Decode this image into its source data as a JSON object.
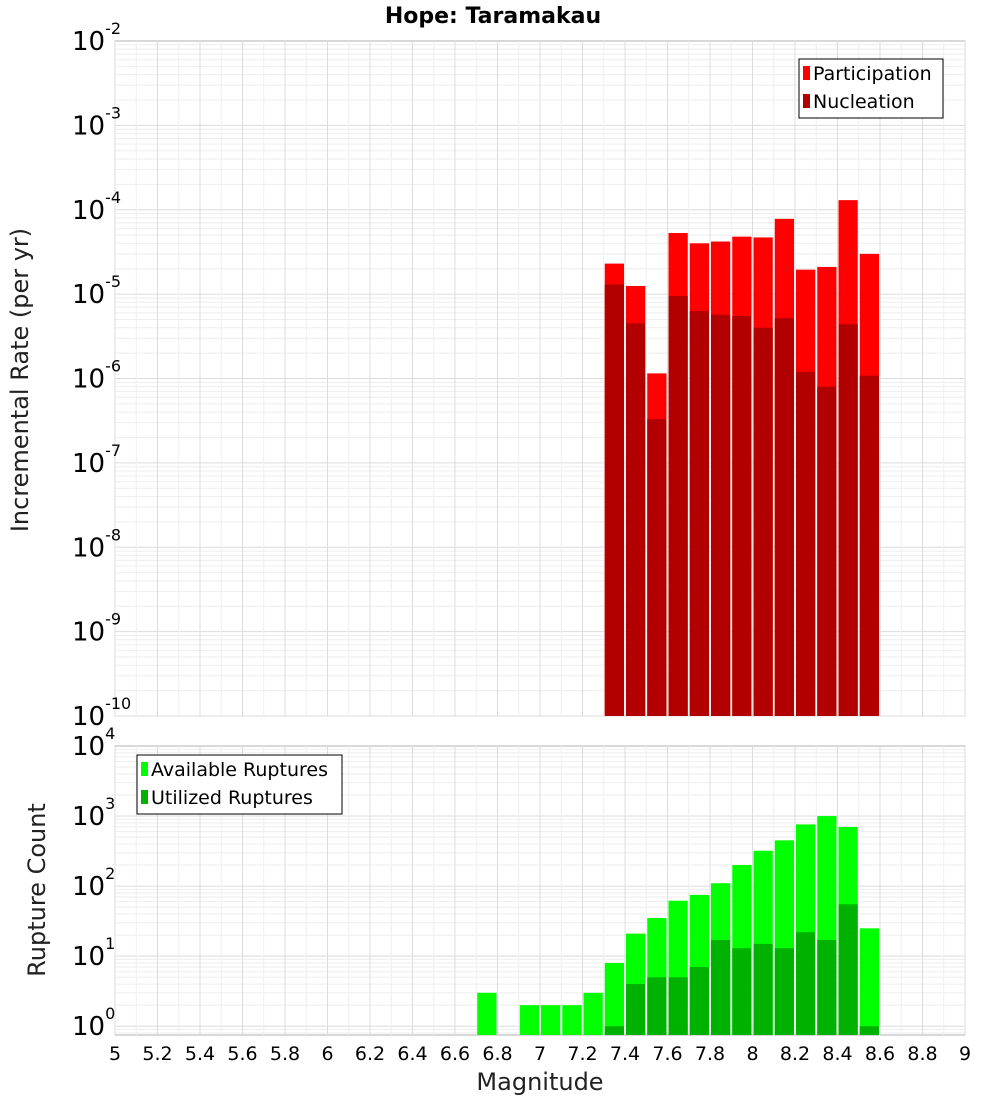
{
  "chart_data": {
    "type": "bar",
    "title": "Hope: Taramakau",
    "xlabel": "Magnitude",
    "xlim": [
      5,
      9
    ],
    "x_ticks": [
      "5",
      "5.2",
      "5.4",
      "5.6",
      "5.8",
      "6",
      "6.2",
      "6.4",
      "6.6",
      "6.8",
      "7",
      "7.2",
      "7.4",
      "7.6",
      "7.8",
      "8",
      "8.2",
      "8.4",
      "8.6",
      "8.8",
      "9"
    ],
    "panels": [
      {
        "ylabel": "Incremental Rate (per yr)",
        "yscale": "log",
        "ylim": [
          1e-10,
          0.01
        ],
        "y_ticks": [
          {
            "base": "10",
            "exp": "-10"
          },
          {
            "base": "10",
            "exp": "-9"
          },
          {
            "base": "10",
            "exp": "-8"
          },
          {
            "base": "10",
            "exp": "-7"
          },
          {
            "base": "10",
            "exp": "-6"
          },
          {
            "base": "10",
            "exp": "-5"
          },
          {
            "base": "10",
            "exp": "-4"
          },
          {
            "base": "10",
            "exp": "-3"
          },
          {
            "base": "10",
            "exp": "-2"
          }
        ],
        "legend_position": "top-right",
        "bar_width": 0.1,
        "series": [
          {
            "name": "Participation",
            "color": "#ff0000",
            "x": [
              7.35,
              7.45,
              7.55,
              7.65,
              7.75,
              7.85,
              7.95,
              8.05,
              8.15,
              8.25,
              8.35,
              8.45,
              8.55
            ],
            "values": [
              2.3e-05,
              1.25e-05,
              1.15e-06,
              5.3e-05,
              4e-05,
              4.2e-05,
              4.8e-05,
              4.7e-05,
              7.8e-05,
              1.95e-05,
              2.1e-05,
              0.00013,
              3e-05
            ]
          },
          {
            "name": "Nucleation",
            "color": "#b20000",
            "x": [
              7.35,
              7.45,
              7.55,
              7.65,
              7.75,
              7.85,
              7.95,
              8.05,
              8.15,
              8.25,
              8.35,
              8.45,
              8.55
            ],
            "values": [
              1.3e-05,
              4.5e-06,
              3.3e-07,
              9.5e-06,
              6.3e-06,
              5.7e-06,
              5.5e-06,
              4e-06,
              5.2e-06,
              1.2e-06,
              8e-07,
              4.4e-06,
              1.08e-06
            ]
          }
        ]
      },
      {
        "ylabel": "Rupture Count",
        "yscale": "log",
        "ylim": [
          0.75,
          10000
        ],
        "y_ticks": [
          {
            "base": "10",
            "exp": "0"
          },
          {
            "base": "10",
            "exp": "1"
          },
          {
            "base": "10",
            "exp": "2"
          },
          {
            "base": "10",
            "exp": "3"
          },
          {
            "base": "10",
            "exp": "4"
          }
        ],
        "legend_position": "top-left",
        "bar_width": 0.1,
        "series": [
          {
            "name": "Available Ruptures",
            "color": "#00ff00",
            "x": [
              6.75,
              6.95,
              7.05,
              7.15,
              7.25,
              7.35,
              7.45,
              7.55,
              7.65,
              7.75,
              7.85,
              7.95,
              8.05,
              8.15,
              8.25,
              8.35,
              8.45,
              8.55
            ],
            "values": [
              3,
              2,
              2,
              2,
              3,
              8,
              21,
              35,
              62,
              75,
              110,
              200,
              320,
              450,
              760,
              1000,
              700,
              25
            ]
          },
          {
            "name": "Utilized Ruptures",
            "color": "#00b200",
            "x": [
              7.35,
              7.45,
              7.55,
              7.65,
              7.75,
              7.85,
              7.95,
              8.05,
              8.15,
              8.25,
              8.35,
              8.45,
              8.55
            ],
            "values": [
              1,
              4,
              5,
              5,
              7,
              17,
              13,
              15,
              13,
              22,
              17,
              55,
              1
            ]
          }
        ]
      }
    ]
  }
}
